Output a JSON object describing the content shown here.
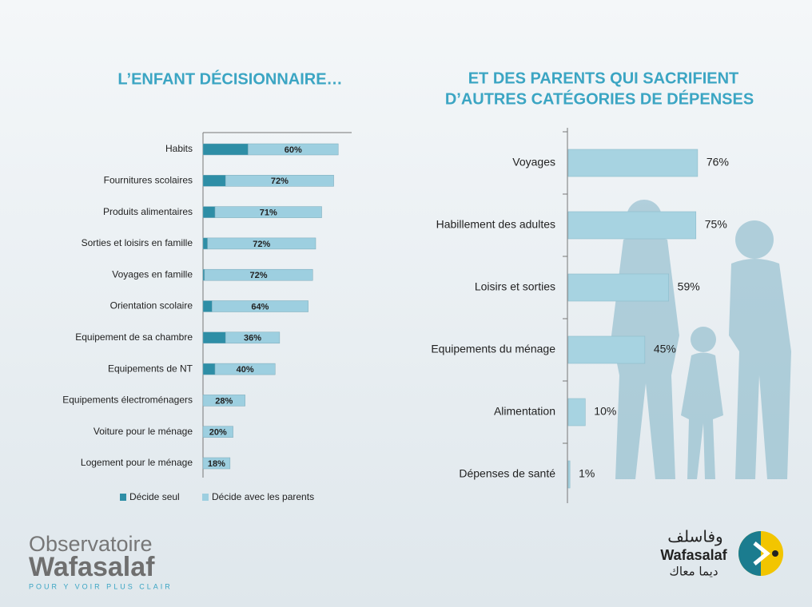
{
  "chart_data": [
    {
      "type": "stacked-hbar",
      "title": "L’ENFANT DÉCISIONNAIRE…",
      "categories": [
        "Habits",
        "Fournitures scolaires",
        "Produits alimentaires",
        "Sorties et loisirs en famille",
        "Voyages en famille",
        "Orientation scolaire",
        "Equipement de sa chambre",
        "Equipements de NT",
        "Equipements électroménagers",
        "Voiture pour le ménage",
        "Logement pour le ménage"
      ],
      "series": [
        {
          "name": "Décide seul",
          "color": "#2e8ea6",
          "values": [
            30,
            15,
            8,
            3,
            1,
            6,
            15,
            8,
            0,
            0,
            0
          ]
        },
        {
          "name": "Décide avec les parents",
          "color": "#9dcfe0",
          "values": [
            60,
            72,
            71,
            72,
            72,
            64,
            36,
            40,
            28,
            20,
            18
          ],
          "value_labels": [
            "60%",
            "72%",
            "71%",
            "72%",
            "72%",
            "64%",
            "36%",
            "40%",
            "28%",
            "20%",
            "18%"
          ]
        }
      ],
      "legend": "bottom"
    },
    {
      "type": "hbar",
      "title": [
        "ET DES PARENTS QUI SACRIFIENT",
        "D’AUTRES CATÉGORIES DE DÉPENSES"
      ],
      "categories": [
        "Voyages",
        "Habillement des adultes",
        "Loisirs et sorties",
        "Equipements du ménage",
        "Alimentation",
        "Dépenses de santé"
      ],
      "values": [
        76,
        75,
        59,
        45,
        10,
        1
      ],
      "value_labels": [
        "76%",
        "75%",
        "59%",
        "45%",
        "10%",
        "1%"
      ],
      "color": "#a7d3e1"
    }
  ],
  "logos": {
    "observatoire": "Observatoire",
    "observatoire_brand": "Wafasalaf",
    "tagline": "POUR Y VOIR PLUS CLAIR",
    "arabic_name": "وفاسلف",
    "brand": "Wafasalaf",
    "arabic_slogan": "ديما معاك"
  }
}
